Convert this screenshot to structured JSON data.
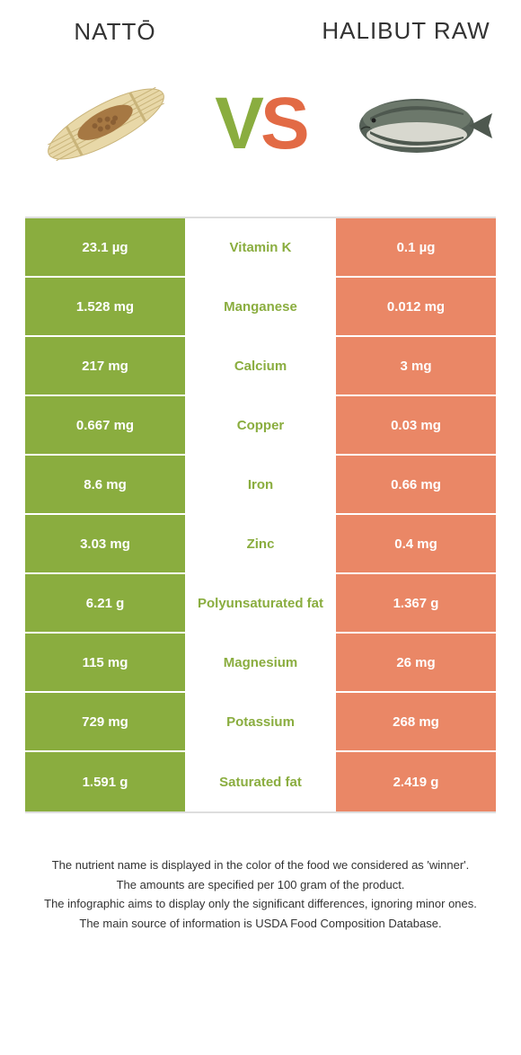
{
  "titles": {
    "left": "Nattō",
    "right": "Halibut raw"
  },
  "vs": {
    "v": "V",
    "s": "S"
  },
  "colors": {
    "green": "#8aad3f",
    "orange": "#e26a45",
    "green_light": "#a3c05a",
    "orange_light": "#ea8766"
  },
  "rows": [
    {
      "left": "23.1 µg",
      "label": "Vitamin K",
      "right": "0.1 µg",
      "winner": "left"
    },
    {
      "left": "1.528 mg",
      "label": "Manganese",
      "right": "0.012 mg",
      "winner": "left"
    },
    {
      "left": "217 mg",
      "label": "Calcium",
      "right": "3 mg",
      "winner": "left"
    },
    {
      "left": "0.667 mg",
      "label": "Copper",
      "right": "0.03 mg",
      "winner": "left"
    },
    {
      "left": "8.6 mg",
      "label": "Iron",
      "right": "0.66 mg",
      "winner": "left"
    },
    {
      "left": "3.03 mg",
      "label": "Zinc",
      "right": "0.4 mg",
      "winner": "left"
    },
    {
      "left": "6.21 g",
      "label": "Polyunsaturated fat",
      "right": "1.367 g",
      "winner": "left"
    },
    {
      "left": "115 mg",
      "label": "Magnesium",
      "right": "26 mg",
      "winner": "left"
    },
    {
      "left": "729 mg",
      "label": "Potassium",
      "right": "268 mg",
      "winner": "left"
    },
    {
      "left": "1.591 g",
      "label": "Saturated fat",
      "right": "2.419 g",
      "winner": "left"
    }
  ],
  "footnotes": [
    "The nutrient name is displayed in the color of the food we considered as 'winner'.",
    "The amounts are specified per 100 gram of the product.",
    "The infographic aims to display only the significant differences, ignoring minor ones.",
    "The main source of information is USDA Food Composition Database."
  ]
}
